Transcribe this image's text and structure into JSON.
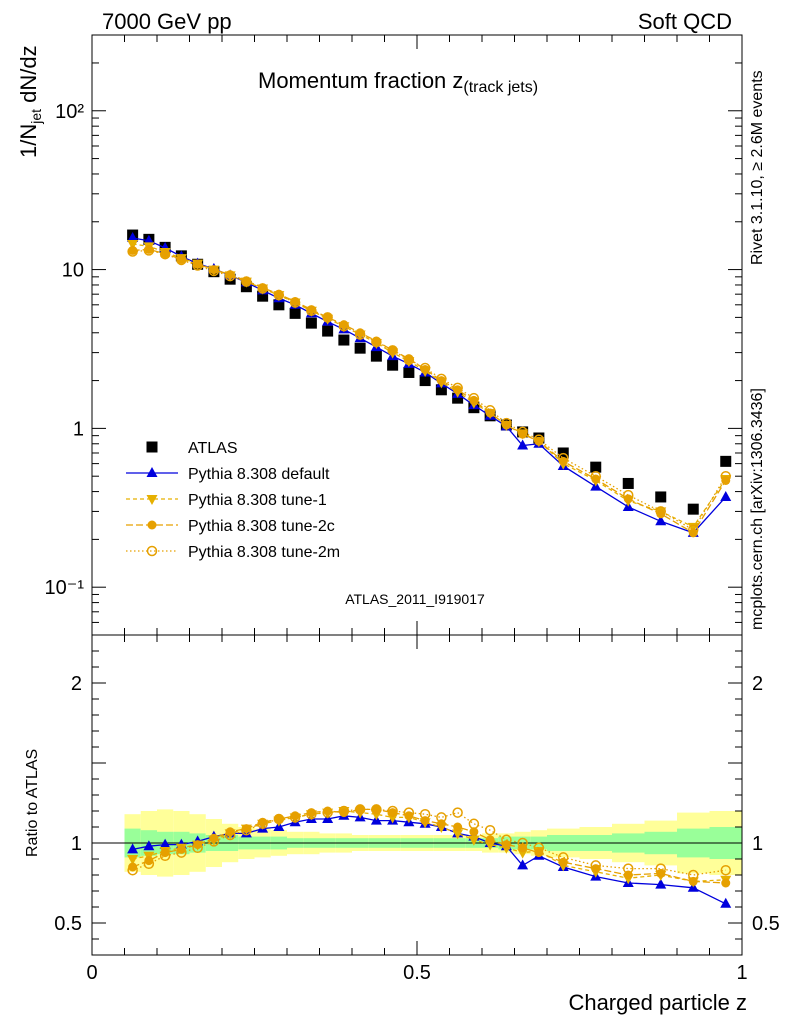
{
  "header": {
    "left": "7000 GeV pp",
    "right": "Soft QCD"
  },
  "side_labels": {
    "rivet": "Rivet 3.1.10, ≥ 2.6M events",
    "mcplots": "mcplots.cern.ch [arXiv:1306.3436]"
  },
  "chart_data": {
    "type": "scatter",
    "title_main": "Momentum fraction z",
    "title_sub": "(track jets)",
    "analysis_id": "ATLAS_2011_I919017",
    "xlabel": "Charged particle z",
    "ylabel_main": "1/N",
    "ylabel_sub": "jet",
    "ylabel_tail": " dN/dz",
    "ratio_ylabel": "Ratio to ATLAS",
    "xlim": [
      0,
      1
    ],
    "ylim": [
      0.05,
      300
    ],
    "ratio_ylim": [
      0.3,
      2.3
    ],
    "yscale": "log",
    "x_ticks": [
      {
        "v": 0,
        "label": "0"
      },
      {
        "v": 0.5,
        "label": "0.5"
      },
      {
        "v": 1,
        "label": "1"
      }
    ],
    "y_ticks": [
      {
        "v": 0.1,
        "label": "10⁻¹"
      },
      {
        "v": 1,
        "label": "1"
      },
      {
        "v": 10,
        "label": "10"
      },
      {
        "v": 100,
        "label": "10²"
      }
    ],
    "ratio_y_ticks": [
      {
        "v": 0.5,
        "label": "0.5"
      },
      {
        "v": 1,
        "label": "1"
      },
      {
        "v": 2,
        "label": "2"
      }
    ],
    "x": [
      0.0625,
      0.0875,
      0.1125,
      0.1375,
      0.1625,
      0.1875,
      0.2125,
      0.2375,
      0.2625,
      0.2875,
      0.3125,
      0.3375,
      0.3625,
      0.3875,
      0.4125,
      0.4375,
      0.4625,
      0.4875,
      0.5125,
      0.5375,
      0.5625,
      0.5875,
      0.6125,
      0.6375,
      0.6625,
      0.6875,
      0.725,
      0.775,
      0.825,
      0.875,
      0.925,
      0.975
    ],
    "series": [
      {
        "name": "ATLAS",
        "marker": "square",
        "color": "#000000",
        "values": [
          16.5,
          15.5,
          13.8,
          12.2,
          10.8,
          9.7,
          8.7,
          7.8,
          6.8,
          6.0,
          5.3,
          4.6,
          4.1,
          3.6,
          3.2,
          2.85,
          2.5,
          2.25,
          2.0,
          1.75,
          1.55,
          1.35,
          1.2,
          1.05,
          0.95,
          0.87,
          0.7,
          0.57,
          0.45,
          0.37,
          0.31,
          0.62
        ],
        "ratio": [
          1,
          1,
          1,
          1,
          1,
          1,
          1,
          1,
          1,
          1,
          1,
          1,
          1,
          1,
          1,
          1,
          1,
          1,
          1,
          1,
          1,
          1,
          1,
          1,
          1,
          1,
          1,
          1,
          1,
          1,
          1,
          1
        ]
      },
      {
        "name": "Pythia 8.308 default",
        "marker": "triangle-up",
        "color": "#0000dd",
        "values": [
          15.8,
          15.2,
          13.7,
          12.1,
          10.9,
          10.1,
          9.2,
          8.3,
          7.4,
          6.6,
          6.0,
          5.3,
          4.7,
          4.2,
          3.7,
          3.25,
          2.85,
          2.55,
          2.25,
          1.92,
          1.65,
          1.4,
          1.2,
          1.03,
          0.78,
          0.8,
          0.58,
          0.43,
          0.32,
          0.26,
          0.22,
          0.37
        ],
        "ratio": [
          0.96,
          0.98,
          0.99,
          0.99,
          1.01,
          1.04,
          1.06,
          1.06,
          1.09,
          1.1,
          1.13,
          1.15,
          1.15,
          1.17,
          1.16,
          1.14,
          1.14,
          1.13,
          1.12,
          1.1,
          1.06,
          1.04,
          1.0,
          0.98,
          0.86,
          0.92,
          0.85,
          0.79,
          0.75,
          0.74,
          0.72,
          0.62
        ]
      },
      {
        "name": "Pythia 8.308 tune-1",
        "marker": "triangle-down",
        "color": "#e6b000",
        "values": [
          14.5,
          14.0,
          12.9,
          11.8,
          10.9,
          10.0,
          9.2,
          8.4,
          7.6,
          6.9,
          6.2,
          5.5,
          4.9,
          4.4,
          3.9,
          3.45,
          3.0,
          2.65,
          2.3,
          1.95,
          1.7,
          1.45,
          1.25,
          1.05,
          0.93,
          0.83,
          0.6,
          0.47,
          0.35,
          0.3,
          0.24,
          0.48
        ],
        "ratio": [
          0.9,
          0.92,
          0.95,
          0.97,
          0.99,
          1.02,
          1.06,
          1.09,
          1.12,
          1.14,
          1.16,
          1.18,
          1.19,
          1.2,
          1.19,
          1.18,
          1.16,
          1.16,
          1.13,
          1.1,
          1.06,
          1.02,
          0.99,
          0.97,
          0.94,
          0.95,
          0.86,
          0.82,
          0.78,
          0.8,
          0.76,
          0.77
        ]
      },
      {
        "name": "Pythia 8.308 tune-2c",
        "marker": "circle",
        "color": "#e6a000",
        "values": [
          13.2,
          13.4,
          12.6,
          11.6,
          10.8,
          10.0,
          9.3,
          8.5,
          7.7,
          7.0,
          6.3,
          5.6,
          5.0,
          4.5,
          4.0,
          3.55,
          3.1,
          2.75,
          2.35,
          2.0,
          1.75,
          1.5,
          1.25,
          1.05,
          0.92,
          0.83,
          0.62,
          0.48,
          0.36,
          0.29,
          0.22,
          0.47
        ],
        "ratio": [
          0.85,
          0.89,
          0.94,
          0.96,
          0.99,
          1.03,
          1.07,
          1.09,
          1.13,
          1.15,
          1.17,
          1.19,
          1.2,
          1.19,
          1.21,
          1.21,
          1.19,
          1.17,
          1.14,
          1.12,
          1.1,
          1.07,
          1.02,
          0.99,
          0.97,
          0.94,
          0.88,
          0.84,
          0.8,
          0.81,
          0.76,
          0.75
        ]
      },
      {
        "name": "Pythia 8.308 tune-2m",
        "marker": "circle-open",
        "color": "#e6a000",
        "values": [
          13.0,
          13.2,
          12.5,
          11.5,
          10.6,
          9.8,
          9.1,
          8.4,
          7.6,
          6.9,
          6.2,
          5.5,
          5.0,
          4.4,
          3.9,
          3.5,
          3.1,
          2.7,
          2.4,
          2.05,
          1.8,
          1.55,
          1.3,
          1.08,
          0.95,
          0.85,
          0.65,
          0.5,
          0.38,
          0.3,
          0.23,
          0.5
        ],
        "ratio": [
          0.83,
          0.87,
          0.92,
          0.94,
          0.97,
          1.01,
          1.05,
          1.08,
          1.12,
          1.15,
          1.16,
          1.18,
          1.19,
          1.2,
          1.21,
          1.21,
          1.2,
          1.19,
          1.18,
          1.16,
          1.19,
          1.12,
          1.08,
          1.02,
          1.0,
          0.97,
          0.91,
          0.86,
          0.84,
          0.84,
          0.8,
          0.83
        ]
      }
    ],
    "uncertainty_band": {
      "x_edges": [
        0.05,
        0.075,
        0.1,
        0.125,
        0.15,
        0.175,
        0.2,
        0.225,
        0.25,
        0.275,
        0.3,
        0.325,
        0.35,
        0.375,
        0.4,
        0.425,
        0.45,
        0.475,
        0.5,
        0.525,
        0.55,
        0.575,
        0.6,
        0.625,
        0.65,
        0.675,
        0.7,
        0.75,
        0.8,
        0.85,
        0.9,
        0.95,
        1.0
      ],
      "inner": [
        0.09,
        0.08,
        0.07,
        0.07,
        0.06,
        0.05,
        0.05,
        0.04,
        0.04,
        0.04,
        0.03,
        0.03,
        0.03,
        0.03,
        0.03,
        0.03,
        0.03,
        0.03,
        0.03,
        0.03,
        0.03,
        0.03,
        0.03,
        0.04,
        0.04,
        0.04,
        0.05,
        0.05,
        0.06,
        0.07,
        0.09,
        0.1
      ],
      "outer": [
        0.18,
        0.2,
        0.21,
        0.2,
        0.18,
        0.15,
        0.12,
        0.1,
        0.09,
        0.08,
        0.07,
        0.07,
        0.06,
        0.06,
        0.05,
        0.05,
        0.05,
        0.05,
        0.05,
        0.05,
        0.05,
        0.05,
        0.06,
        0.06,
        0.07,
        0.08,
        0.09,
        0.1,
        0.12,
        0.14,
        0.19,
        0.2
      ],
      "inner_color": "#99ff99",
      "outer_color": "#ffff99"
    },
    "legend_position": "lower-left",
    "grid": false
  }
}
